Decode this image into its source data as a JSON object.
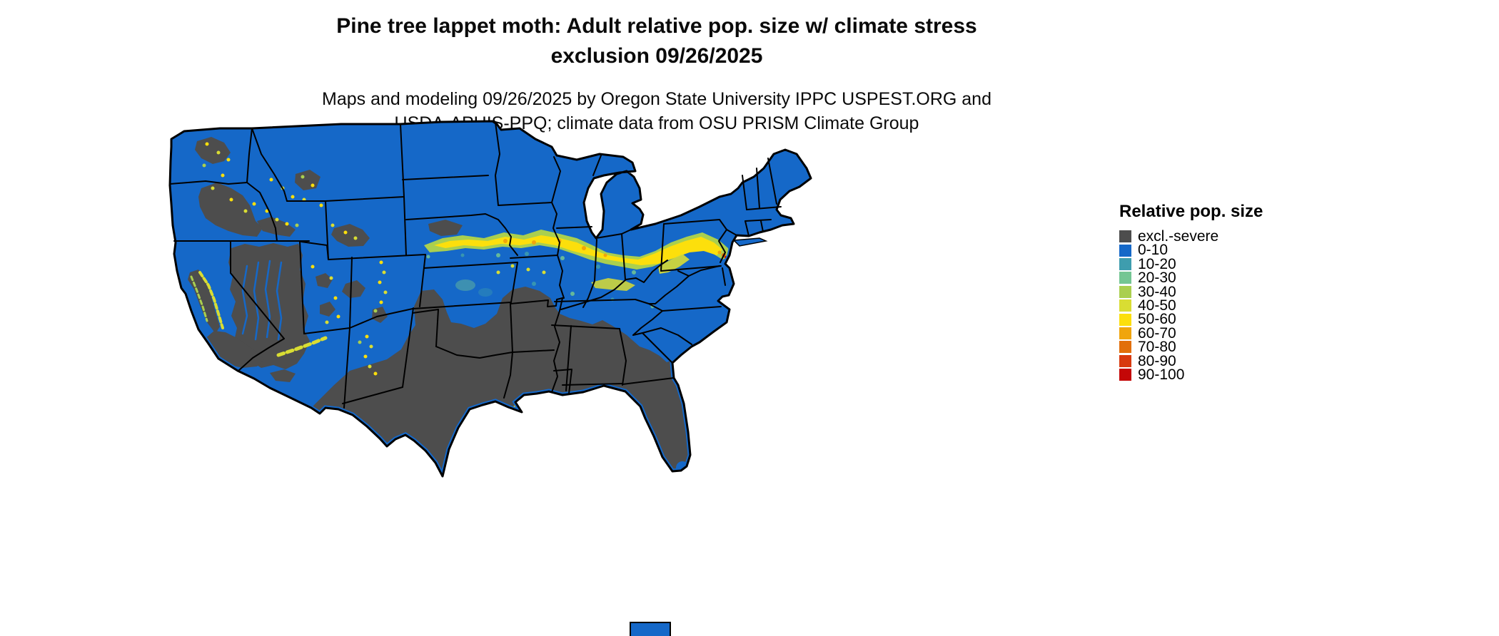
{
  "header": {
    "title_lines": [
      "Pine tree lappet moth: Adult relative pop. size w/ climate stress",
      "exclusion 09/26/2025"
    ],
    "credit_lines": [
      "Maps and modeling 09/26/2025 by Oregon State University IPPC USPEST.ORG and",
      "USDA-APHIS-PPQ; climate data from OSU PRISM Climate Group"
    ]
  },
  "legend": {
    "title": "Relative pop. size",
    "items": [
      {
        "label": "excl.-severe",
        "color": "#4D4D4D"
      },
      {
        "label": "0-10",
        "color": "#1568C8"
      },
      {
        "label": "10-20",
        "color": "#3E9DAE"
      },
      {
        "label": "20-30",
        "color": "#74C693"
      },
      {
        "label": "30-40",
        "color": "#AACF4F"
      },
      {
        "label": "40-50",
        "color": "#D9DD33"
      },
      {
        "label": "50-60",
        "color": "#FCDF0C"
      },
      {
        "label": "60-70",
        "color": "#F0A50C"
      },
      {
        "label": "70-80",
        "color": "#E26F0B"
      },
      {
        "label": "80-90",
        "color": "#D8390E"
      },
      {
        "label": "90-100",
        "color": "#C40707"
      }
    ]
  }
}
